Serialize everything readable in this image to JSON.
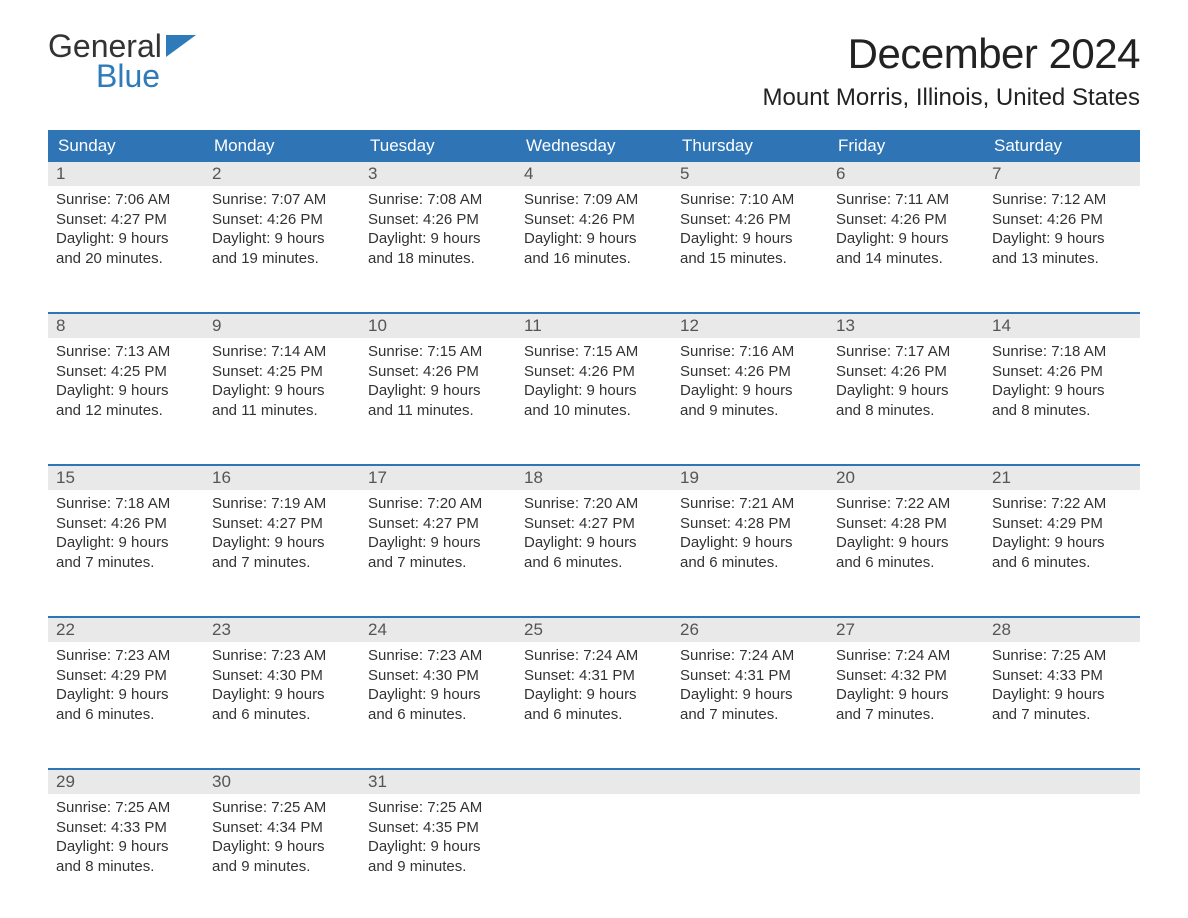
{
  "brand": {
    "line1": "General",
    "line2": "Blue",
    "accent_hex": "#2f7ab8"
  },
  "title": "December 2024",
  "location": "Mount Morris, Illinois, United States",
  "colors": {
    "header_bg": "#2f75b5",
    "header_text": "#ffffff",
    "daynum_bg": "#e9e9e9",
    "week_border": "#2f75b5",
    "body_text": "#333333",
    "page_bg": "#ffffff"
  },
  "layout": {
    "columns": 7,
    "weeks": 5,
    "font_family": "Arial",
    "title_fontsize": 42,
    "location_fontsize": 24,
    "dow_fontsize": 17,
    "body_fontsize": 15
  },
  "day_headers": [
    "Sunday",
    "Monday",
    "Tuesday",
    "Wednesday",
    "Thursday",
    "Friday",
    "Saturday"
  ],
  "weeks": [
    [
      {
        "n": "1",
        "sunrise": "7:06 AM",
        "sunset": "4:27 PM",
        "daylight": "9 hours and 20 minutes."
      },
      {
        "n": "2",
        "sunrise": "7:07 AM",
        "sunset": "4:26 PM",
        "daylight": "9 hours and 19 minutes."
      },
      {
        "n": "3",
        "sunrise": "7:08 AM",
        "sunset": "4:26 PM",
        "daylight": "9 hours and 18 minutes."
      },
      {
        "n": "4",
        "sunrise": "7:09 AM",
        "sunset": "4:26 PM",
        "daylight": "9 hours and 16 minutes."
      },
      {
        "n": "5",
        "sunrise": "7:10 AM",
        "sunset": "4:26 PM",
        "daylight": "9 hours and 15 minutes."
      },
      {
        "n": "6",
        "sunrise": "7:11 AM",
        "sunset": "4:26 PM",
        "daylight": "9 hours and 14 minutes."
      },
      {
        "n": "7",
        "sunrise": "7:12 AM",
        "sunset": "4:26 PM",
        "daylight": "9 hours and 13 minutes."
      }
    ],
    [
      {
        "n": "8",
        "sunrise": "7:13 AM",
        "sunset": "4:25 PM",
        "daylight": "9 hours and 12 minutes."
      },
      {
        "n": "9",
        "sunrise": "7:14 AM",
        "sunset": "4:25 PM",
        "daylight": "9 hours and 11 minutes."
      },
      {
        "n": "10",
        "sunrise": "7:15 AM",
        "sunset": "4:26 PM",
        "daylight": "9 hours and 11 minutes."
      },
      {
        "n": "11",
        "sunrise": "7:15 AM",
        "sunset": "4:26 PM",
        "daylight": "9 hours and 10 minutes."
      },
      {
        "n": "12",
        "sunrise": "7:16 AM",
        "sunset": "4:26 PM",
        "daylight": "9 hours and 9 minutes."
      },
      {
        "n": "13",
        "sunrise": "7:17 AM",
        "sunset": "4:26 PM",
        "daylight": "9 hours and 8 minutes."
      },
      {
        "n": "14",
        "sunrise": "7:18 AM",
        "sunset": "4:26 PM",
        "daylight": "9 hours and 8 minutes."
      }
    ],
    [
      {
        "n": "15",
        "sunrise": "7:18 AM",
        "sunset": "4:26 PM",
        "daylight": "9 hours and 7 minutes."
      },
      {
        "n": "16",
        "sunrise": "7:19 AM",
        "sunset": "4:27 PM",
        "daylight": "9 hours and 7 minutes."
      },
      {
        "n": "17",
        "sunrise": "7:20 AM",
        "sunset": "4:27 PM",
        "daylight": "9 hours and 7 minutes."
      },
      {
        "n": "18",
        "sunrise": "7:20 AM",
        "sunset": "4:27 PM",
        "daylight": "9 hours and 6 minutes."
      },
      {
        "n": "19",
        "sunrise": "7:21 AM",
        "sunset": "4:28 PM",
        "daylight": "9 hours and 6 minutes."
      },
      {
        "n": "20",
        "sunrise": "7:22 AM",
        "sunset": "4:28 PM",
        "daylight": "9 hours and 6 minutes."
      },
      {
        "n": "21",
        "sunrise": "7:22 AM",
        "sunset": "4:29 PM",
        "daylight": "9 hours and 6 minutes."
      }
    ],
    [
      {
        "n": "22",
        "sunrise": "7:23 AM",
        "sunset": "4:29 PM",
        "daylight": "9 hours and 6 minutes."
      },
      {
        "n": "23",
        "sunrise": "7:23 AM",
        "sunset": "4:30 PM",
        "daylight": "9 hours and 6 minutes."
      },
      {
        "n": "24",
        "sunrise": "7:23 AM",
        "sunset": "4:30 PM",
        "daylight": "9 hours and 6 minutes."
      },
      {
        "n": "25",
        "sunrise": "7:24 AM",
        "sunset": "4:31 PM",
        "daylight": "9 hours and 6 minutes."
      },
      {
        "n": "26",
        "sunrise": "7:24 AM",
        "sunset": "4:31 PM",
        "daylight": "9 hours and 7 minutes."
      },
      {
        "n": "27",
        "sunrise": "7:24 AM",
        "sunset": "4:32 PM",
        "daylight": "9 hours and 7 minutes."
      },
      {
        "n": "28",
        "sunrise": "7:25 AM",
        "sunset": "4:33 PM",
        "daylight": "9 hours and 7 minutes."
      }
    ],
    [
      {
        "n": "29",
        "sunrise": "7:25 AM",
        "sunset": "4:33 PM",
        "daylight": "9 hours and 8 minutes."
      },
      {
        "n": "30",
        "sunrise": "7:25 AM",
        "sunset": "4:34 PM",
        "daylight": "9 hours and 9 minutes."
      },
      {
        "n": "31",
        "sunrise": "7:25 AM",
        "sunset": "4:35 PM",
        "daylight": "9 hours and 9 minutes."
      },
      {
        "empty": true
      },
      {
        "empty": true
      },
      {
        "empty": true
      },
      {
        "empty": true
      }
    ]
  ],
  "labels": {
    "sunrise": "Sunrise:",
    "sunset": "Sunset:",
    "daylight": "Daylight:"
  }
}
